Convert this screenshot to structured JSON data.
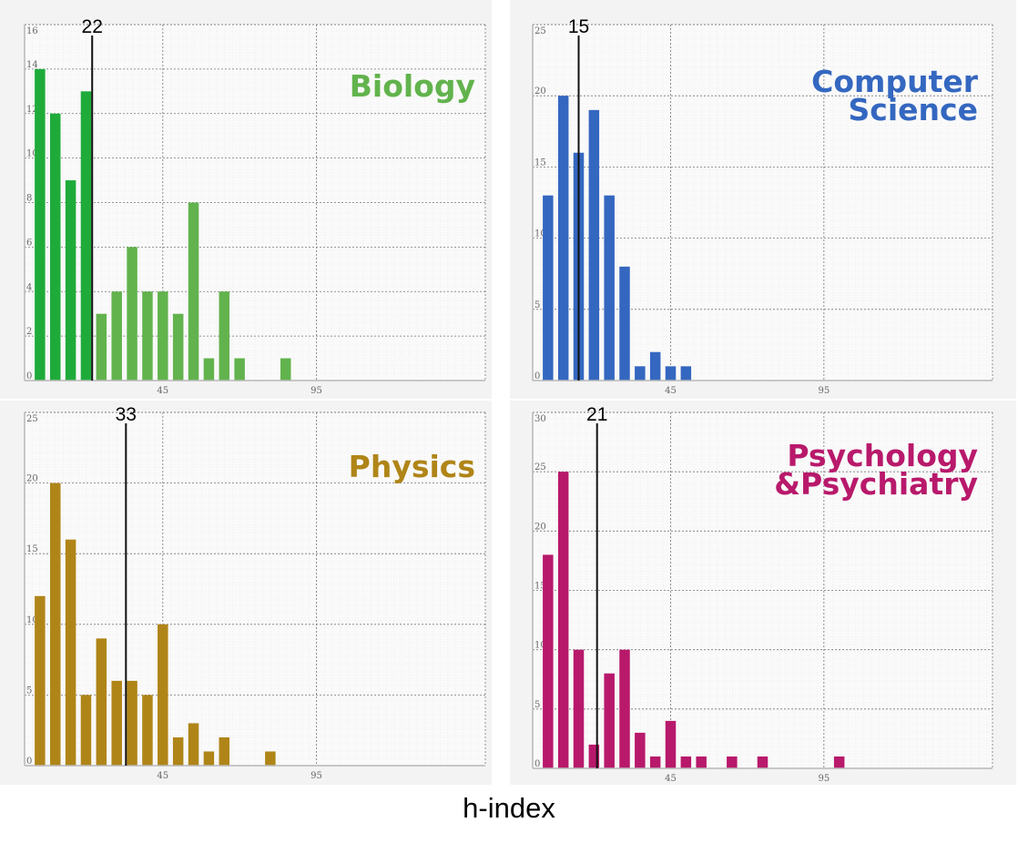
{
  "caption": "h-index",
  "chart_data": [
    {
      "type": "bar",
      "title": "Biology",
      "color": "#62b34d",
      "highlight_color": "#1fab3a",
      "highlight_bins": 4,
      "xlabel": "h-index",
      "x_ticks": [
        45,
        95
      ],
      "y_ticks": [
        0,
        2,
        4,
        6,
        8,
        10,
        12,
        14,
        16
      ],
      "ylim": [
        0,
        16
      ],
      "median": 22,
      "bins": [
        5,
        10,
        15,
        20,
        25,
        30,
        35,
        40,
        45,
        50,
        55,
        60,
        65,
        70,
        75,
        80,
        85
      ],
      "values": [
        14,
        12,
        9,
        13,
        3,
        4,
        6,
        4,
        4,
        3,
        8,
        1,
        4,
        1,
        0,
        0,
        1
      ]
    },
    {
      "type": "bar",
      "title": "Computer Science",
      "title_lines": [
        "Computer",
        "Science"
      ],
      "color": "#3467c0",
      "xlabel": "h-index",
      "x_ticks": [
        45,
        95
      ],
      "y_ticks": [
        0,
        5,
        10,
        15,
        20,
        25
      ],
      "ylim": [
        0,
        25
      ],
      "median": 15,
      "bins": [
        5,
        10,
        15,
        20,
        25,
        30,
        35,
        40,
        45,
        50
      ],
      "values": [
        13,
        20,
        16,
        19,
        13,
        8,
        1,
        2,
        1,
        1
      ]
    },
    {
      "type": "bar",
      "title": "Physics",
      "color": "#b08518",
      "xlabel": "h-index",
      "x_ticks": [
        45,
        95
      ],
      "y_ticks": [
        0,
        5,
        10,
        15,
        20,
        25
      ],
      "ylim": [
        0,
        25
      ],
      "median": 33,
      "bins": [
        5,
        10,
        15,
        20,
        25,
        30,
        35,
        40,
        45,
        50,
        55,
        60,
        65,
        70,
        75,
        80
      ],
      "values": [
        12,
        20,
        16,
        5,
        9,
        6,
        6,
        5,
        10,
        2,
        3,
        1,
        2,
        0,
        0,
        1
      ]
    },
    {
      "type": "bar",
      "title": "Psychology &Psychiatry",
      "title_lines": [
        "Psychology",
        "&Psychiatry"
      ],
      "color": "#b8196b",
      "xlabel": "h-index",
      "x_ticks": [
        45,
        95
      ],
      "y_ticks": [
        0,
        5,
        10,
        15,
        20,
        25,
        30
      ],
      "ylim": [
        0,
        30
      ],
      "median": 21,
      "bins": [
        5,
        10,
        15,
        20,
        25,
        30,
        35,
        40,
        45,
        50,
        55,
        60,
        65,
        70,
        75,
        80,
        85,
        90,
        95,
        100
      ],
      "values": [
        18,
        25,
        10,
        2,
        8,
        10,
        3,
        1,
        4,
        1,
        1,
        0,
        1,
        0,
        1,
        0,
        0,
        0,
        0,
        1
      ]
    }
  ]
}
